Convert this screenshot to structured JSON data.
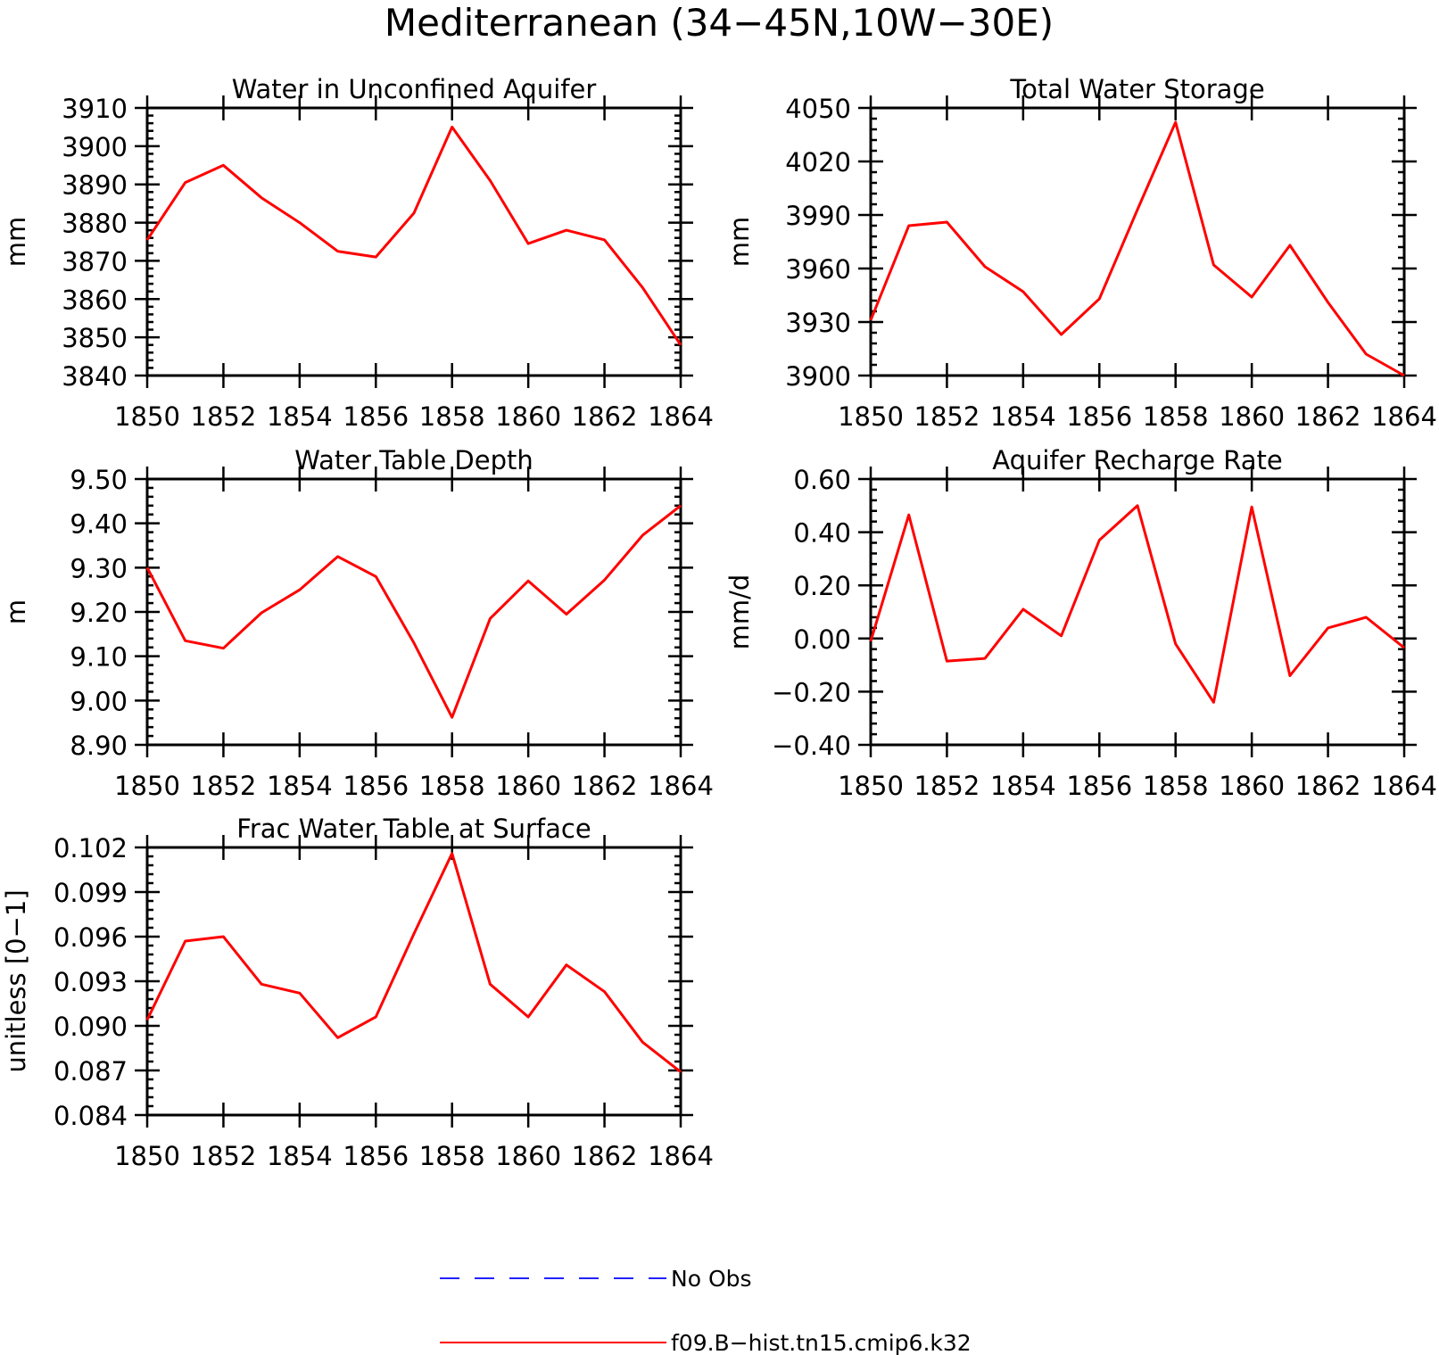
{
  "figure": {
    "title": "Mediterranean (34−45N,10W−30E)"
  },
  "legend": {
    "entries": [
      {
        "label": "No Obs",
        "color": "#2222ff",
        "style": "dashed"
      },
      {
        "label": "f09.B−hist.tn15.cmip6.k32",
        "color": "#ff0000",
        "style": "solid"
      }
    ]
  },
  "chart_data": [
    {
      "type": "line",
      "title": "Water in Unconfined Aquifer",
      "xlabel": "",
      "ylabel": "mm",
      "xlim": [
        1850,
        1864
      ],
      "ylim": [
        3840,
        3910
      ],
      "yticks": [
        3840,
        3850,
        3860,
        3870,
        3880,
        3890,
        3900,
        3910
      ],
      "ytick_labels": [
        "3840",
        "3850",
        "3860",
        "3870",
        "3880",
        "3890",
        "3900",
        "3910"
      ],
      "xticks": [
        1850,
        1852,
        1854,
        1856,
        1858,
        1860,
        1862,
        1864
      ],
      "xtick_labels": [
        "1850",
        "1852",
        "1854",
        "1856",
        "1858",
        "1860",
        "1862",
        "1864"
      ],
      "x": [
        1850,
        1851,
        1852,
        1853,
        1854,
        1855,
        1856,
        1857,
        1858,
        1859,
        1860,
        1861,
        1862,
        1863,
        1864
      ],
      "series": [
        {
          "name": "f09.B−hist.tn15.cmip6.k32",
          "color": "#ff0000",
          "values": [
            3875.5,
            3890.5,
            3895,
            3886.5,
            3880,
            3872.5,
            3871,
            3882.5,
            3905,
            3891,
            3874.5,
            3878,
            3875.5,
            3863,
            3848
          ]
        }
      ]
    },
    {
      "type": "line",
      "title": "Total Water Storage",
      "xlabel": "",
      "ylabel": "mm",
      "xlim": [
        1850,
        1864
      ],
      "ylim": [
        3900,
        4050
      ],
      "yticks": [
        3900,
        3930,
        3960,
        3990,
        4020,
        4050
      ],
      "ytick_labels": [
        "3900",
        "3930",
        "3960",
        "3990",
        "4020",
        "4050"
      ],
      "xticks": [
        1850,
        1852,
        1854,
        1856,
        1858,
        1860,
        1862,
        1864
      ],
      "xtick_labels": [
        "1850",
        "1852",
        "1854",
        "1856",
        "1858",
        "1860",
        "1862",
        "1864"
      ],
      "x": [
        1850,
        1851,
        1852,
        1853,
        1854,
        1855,
        1856,
        1857,
        1858,
        1859,
        1860,
        1861,
        1862,
        1863,
        1864
      ],
      "series": [
        {
          "name": "f09.B−hist.tn15.cmip6.k32",
          "color": "#ff0000",
          "values": [
            3931,
            3984,
            3986,
            3961,
            3947,
            3923,
            3943,
            3993,
            4042,
            3962,
            3944,
            3973,
            3941,
            3912,
            3900
          ]
        }
      ]
    },
    {
      "type": "line",
      "title": "Water Table Depth",
      "xlabel": "",
      "ylabel": "m",
      "xlim": [
        1850,
        1864
      ],
      "ylim": [
        8.9,
        9.5
      ],
      "yticks": [
        8.9,
        9.0,
        9.1,
        9.2,
        9.3,
        9.4,
        9.5
      ],
      "ytick_labels": [
        "8.90",
        "9.00",
        "9.10",
        "9.20",
        "9.30",
        "9.40",
        "9.50"
      ],
      "xticks": [
        1850,
        1852,
        1854,
        1856,
        1858,
        1860,
        1862,
        1864
      ],
      "xtick_labels": [
        "1850",
        "1852",
        "1854",
        "1856",
        "1858",
        "1860",
        "1862",
        "1864"
      ],
      "x": [
        1850,
        1851,
        1852,
        1853,
        1854,
        1855,
        1856,
        1857,
        1858,
        1859,
        1860,
        1861,
        1862,
        1863,
        1864
      ],
      "series": [
        {
          "name": "f09.B−hist.tn15.cmip6.k32",
          "color": "#ff0000",
          "values": [
            9.3,
            9.135,
            9.118,
            9.198,
            9.25,
            9.325,
            9.28,
            9.13,
            8.962,
            9.185,
            9.27,
            9.195,
            9.272,
            9.373,
            9.44
          ]
        }
      ]
    },
    {
      "type": "line",
      "title": "Aquifer Recharge Rate",
      "xlabel": "",
      "ylabel": "mm/d",
      "xlim": [
        1850,
        1864
      ],
      "ylim": [
        -0.4,
        0.6
      ],
      "yticks": [
        -0.4,
        -0.2,
        0.0,
        0.2,
        0.4,
        0.6
      ],
      "ytick_labels": [
        "−0.40",
        "−0.20",
        "0.00",
        "0.20",
        "0.40",
        "0.60"
      ],
      "xticks": [
        1850,
        1852,
        1854,
        1856,
        1858,
        1860,
        1862,
        1864
      ],
      "xtick_labels": [
        "1850",
        "1852",
        "1854",
        "1856",
        "1858",
        "1860",
        "1862",
        "1864"
      ],
      "x": [
        1850,
        1851,
        1852,
        1853,
        1854,
        1855,
        1856,
        1857,
        1858,
        1859,
        1860,
        1861,
        1862,
        1863,
        1864
      ],
      "series": [
        {
          "name": "f09.B−hist.tn15.cmip6.k32",
          "color": "#ff0000",
          "values": [
            -0.01,
            0.465,
            -0.085,
            -0.075,
            0.11,
            0.01,
            0.37,
            0.5,
            -0.02,
            -0.24,
            0.495,
            -0.14,
            0.04,
            0.08,
            -0.035
          ]
        }
      ]
    },
    {
      "type": "line",
      "title": "Frac Water Table at Surface",
      "xlabel": "",
      "ylabel": "unitless [0−1]",
      "xlim": [
        1850,
        1864
      ],
      "ylim": [
        0.084,
        0.102
      ],
      "yticks": [
        0.084,
        0.087,
        0.09,
        0.093,
        0.096,
        0.099,
        0.102
      ],
      "ytick_labels": [
        "0.084",
        "0.087",
        "0.090",
        "0.093",
        "0.096",
        "0.099",
        "0.102"
      ],
      "xticks": [
        1850,
        1852,
        1854,
        1856,
        1858,
        1860,
        1862,
        1864
      ],
      "xtick_labels": [
        "1850",
        "1852",
        "1854",
        "1856",
        "1858",
        "1860",
        "1862",
        "1864"
      ],
      "x": [
        1850,
        1851,
        1852,
        1853,
        1854,
        1855,
        1856,
        1857,
        1858,
        1859,
        1860,
        1861,
        1862,
        1863,
        1864
      ],
      "series": [
        {
          "name": "f09.B−hist.tn15.cmip6.k32",
          "color": "#ff0000",
          "values": [
            0.0904,
            0.0957,
            0.096,
            0.0928,
            0.0922,
            0.0892,
            0.0906,
            0.0962,
            0.1016,
            0.0928,
            0.0906,
            0.0941,
            0.0923,
            0.0889,
            0.0869
          ]
        }
      ]
    }
  ]
}
